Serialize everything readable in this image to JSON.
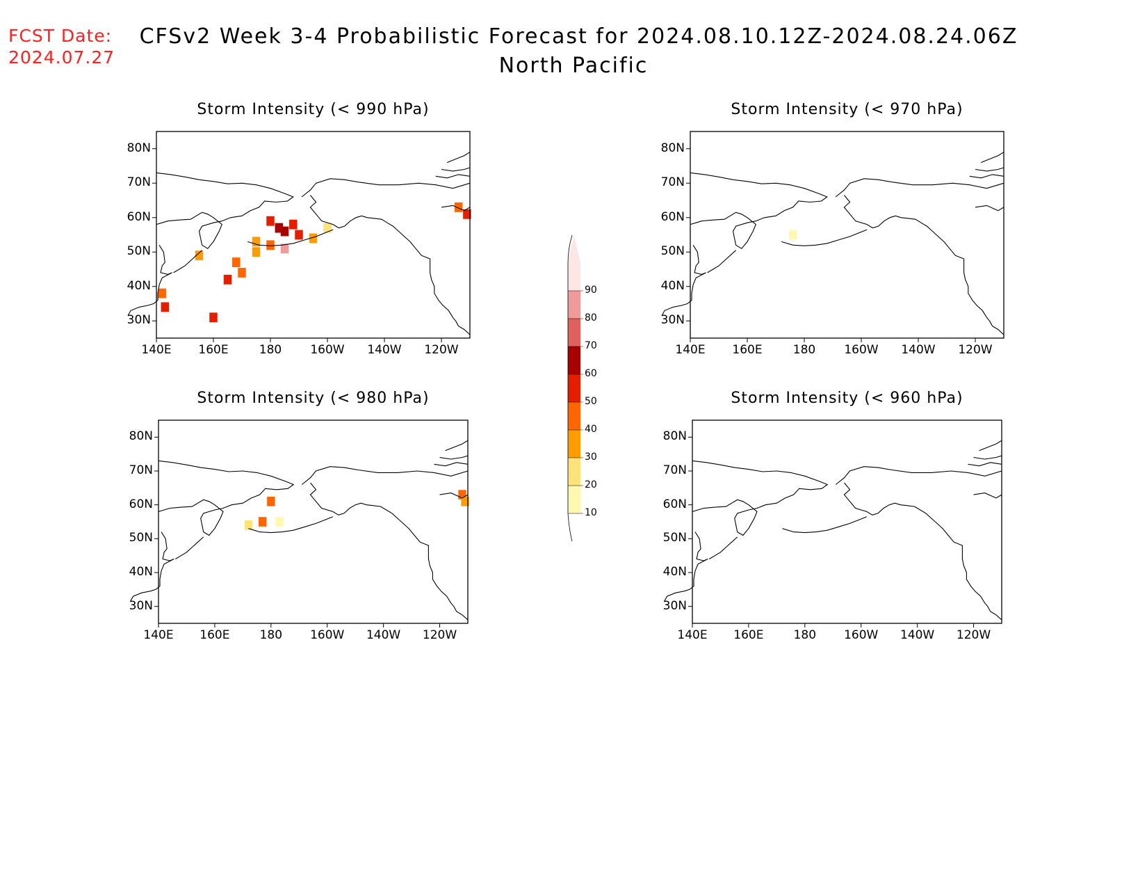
{
  "header": {
    "fcst_label": "FCST Date:",
    "fcst_date": "2024.07.27",
    "title_line1": "CFSv2 Week 3-4 Probabilistic Forecast for 2024.08.10.12Z-2024.08.24.06Z",
    "title_line2": "North Pacific"
  },
  "axes": {
    "y_ticks": [
      "80N",
      "70N",
      "60N",
      "50N",
      "40N",
      "30N"
    ],
    "x_ticks": [
      "140E",
      "160E",
      "180",
      "160W",
      "140W",
      "120W"
    ],
    "lat_range": [
      25,
      85
    ],
    "lon_range_east": [
      140,
      250
    ]
  },
  "panels": [
    {
      "id": "p990",
      "title": "Storm Intensity (< 990 hPa)",
      "prob_cells": [
        {
          "lat": 59,
          "lon": 180,
          "p": 55
        },
        {
          "lat": 57,
          "lon": 183,
          "p": 60
        },
        {
          "lat": 58,
          "lon": 188,
          "p": 55
        },
        {
          "lat": 55,
          "lon": 190,
          "p": 50
        },
        {
          "lat": 56,
          "lon": 185,
          "p": 65
        },
        {
          "lat": 52,
          "lon": 180,
          "p": 45
        },
        {
          "lat": 51,
          "lon": 185,
          "p": 85
        },
        {
          "lat": 50,
          "lon": 175,
          "p": 35
        },
        {
          "lat": 54,
          "lon": 195,
          "p": 30
        },
        {
          "lat": 57,
          "lon": 200,
          "p": 20
        },
        {
          "lat": 53,
          "lon": 175,
          "p": 30
        },
        {
          "lat": 47,
          "lon": 168,
          "p": 40
        },
        {
          "lat": 44,
          "lon": 170,
          "p": 45
        },
        {
          "lat": 49,
          "lon": 155,
          "p": 35
        },
        {
          "lat": 42,
          "lon": 165,
          "p": 55
        },
        {
          "lat": 38,
          "lon": 142,
          "p": 40
        },
        {
          "lat": 34,
          "lon": 143,
          "p": 55
        },
        {
          "lat": 31,
          "lon": 160,
          "p": 50
        },
        {
          "lat": 63,
          "lon": 246,
          "p": 40
        },
        {
          "lat": 61,
          "lon": 249,
          "p": 55
        }
      ]
    },
    {
      "id": "p970",
      "title": "Storm Intensity (< 970 hPa)",
      "prob_cells": [
        {
          "lat": 55,
          "lon": 176,
          "p": 15
        }
      ]
    },
    {
      "id": "p980",
      "title": "Storm Intensity (< 980 hPa)",
      "prob_cells": [
        {
          "lat": 61,
          "lon": 180,
          "p": 45
        },
        {
          "lat": 55,
          "lon": 177,
          "p": 40
        },
        {
          "lat": 54,
          "lon": 172,
          "p": 20
        },
        {
          "lat": 55,
          "lon": 183,
          "p": 15
        },
        {
          "lat": 63,
          "lon": 248,
          "p": 45
        },
        {
          "lat": 61,
          "lon": 249,
          "p": 35
        }
      ]
    },
    {
      "id": "p960",
      "title": "Storm Intensity (< 960 hPa)",
      "prob_cells": []
    }
  ],
  "colorbar": {
    "levels": [
      "10",
      "20",
      "30",
      "40",
      "50",
      "60",
      "70",
      "80",
      "90"
    ],
    "colors": [
      "#fff8b0",
      "#fde37a",
      "#ff9c00",
      "#ff6600",
      "#e61e00",
      "#a80000",
      "#e06060",
      "#f09a9a",
      "#fde6e6"
    ]
  }
}
